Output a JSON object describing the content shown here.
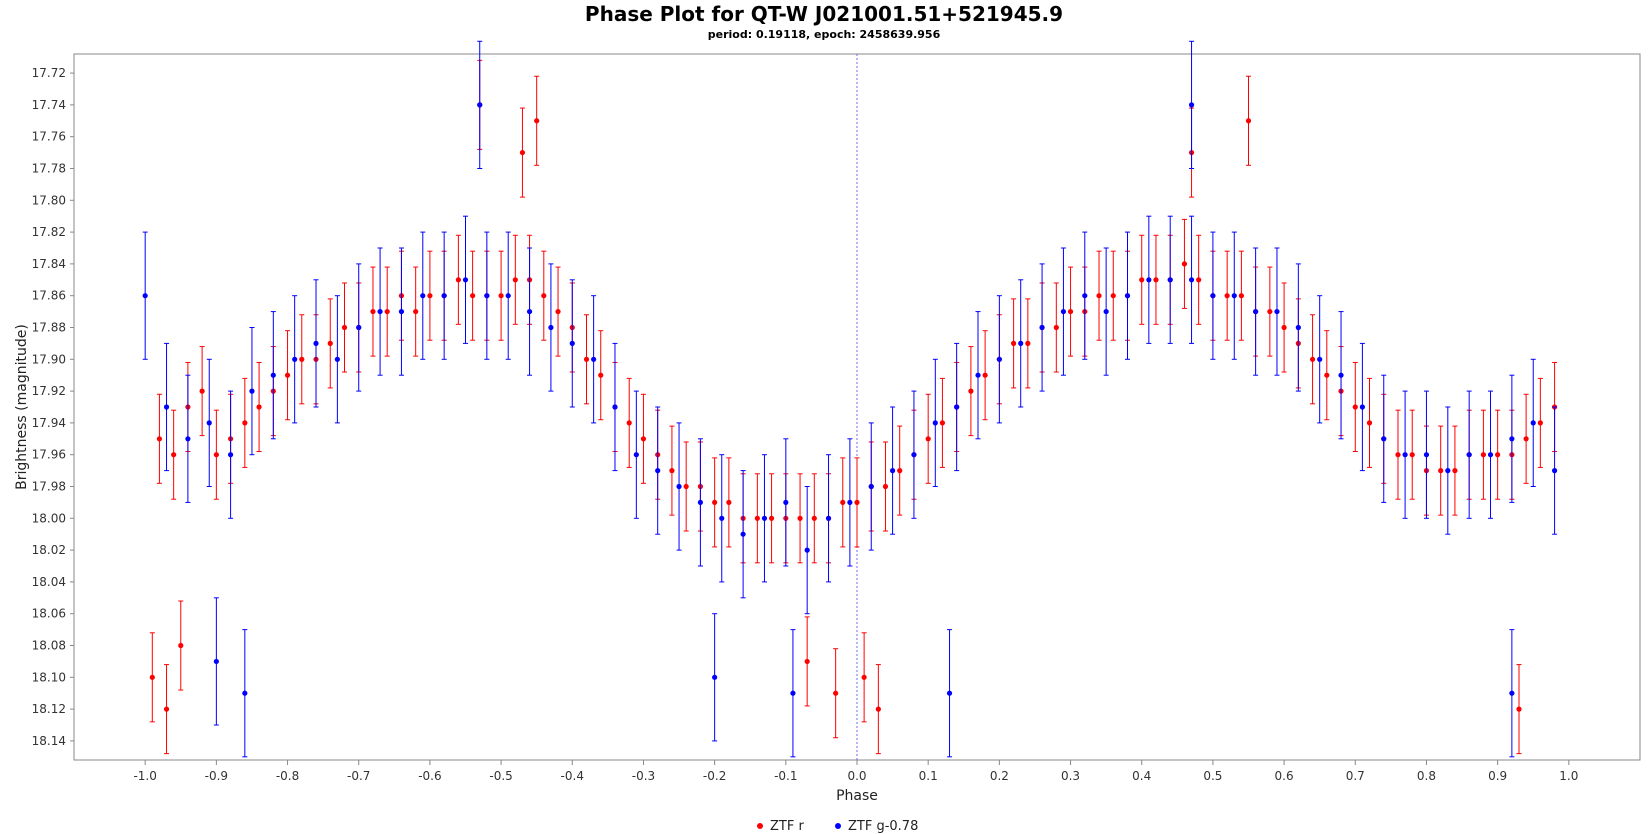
{
  "chart_data": {
    "type": "scatter",
    "title": "Phase Plot for QT-W J021001.51+521945.9",
    "subtitle": "period: 0.19118, epoch: 2458639.956",
    "xlabel": "Phase",
    "ylabel": "Brightness (magnitude)",
    "xlim": [
      -1.1,
      1.1
    ],
    "ylim": [
      17.708,
      18.152
    ],
    "y_inverted": true,
    "x_ticks": [
      "-1.0",
      "-0.9",
      "-0.8",
      "-0.7",
      "-0.6",
      "-0.5",
      "-0.4",
      "-0.3",
      "-0.2",
      "-0.1",
      "0.0",
      "0.1",
      "0.2",
      "0.3",
      "0.4",
      "0.5",
      "0.6",
      "0.7",
      "0.8",
      "0.9",
      "1.0"
    ],
    "y_ticks": [
      "17.72",
      "17.74",
      "17.76",
      "17.78",
      "17.80",
      "17.82",
      "17.84",
      "17.86",
      "17.88",
      "17.90",
      "17.92",
      "17.94",
      "17.96",
      "17.98",
      "18.00",
      "18.02",
      "18.04",
      "18.06",
      "18.08",
      "18.10",
      "18.12",
      "18.14"
    ],
    "grid": false,
    "reference_line_x": 0.0,
    "legend_position": "bottom-center",
    "series": [
      {
        "name": "ZTF r",
        "color": "#ff0000",
        "errorbar": 0.028,
        "x": [
          -0.98,
          -0.96,
          -0.94,
          -0.92,
          -0.9,
          -0.88,
          -0.86,
          -0.84,
          -0.82,
          -0.8,
          -0.78,
          -0.76,
          -0.74,
          -0.72,
          -0.7,
          -0.68,
          -0.66,
          -0.64,
          -0.62,
          -0.6,
          -0.58,
          -0.56,
          -0.54,
          -0.52,
          -0.5,
          -0.48,
          -0.46,
          -0.44,
          -0.42,
          -0.4,
          -0.38,
          -0.36,
          -0.34,
          -0.32,
          -0.3,
          -0.28,
          -0.26,
          -0.24,
          -0.22,
          -0.2,
          -0.18,
          -0.16,
          -0.14,
          -0.12,
          -0.1,
          -0.08,
          -0.06,
          -0.04,
          -0.02,
          0.0,
          0.02,
          0.04,
          0.06,
          0.08,
          0.1,
          0.12,
          0.14,
          0.16,
          0.18,
          0.2,
          0.22,
          0.24,
          0.26,
          0.28,
          0.3,
          0.32,
          0.34,
          0.36,
          0.38,
          0.4,
          0.42,
          0.44,
          0.46,
          0.48,
          0.5,
          0.52,
          0.54,
          0.56,
          0.58,
          0.6,
          0.62,
          0.64,
          0.66,
          0.68,
          0.7,
          0.72,
          0.74,
          0.76,
          0.78,
          0.8,
          0.82,
          0.84,
          0.86,
          0.88,
          0.9,
          0.92,
          0.94,
          0.96,
          0.98,
          -0.99,
          -0.97,
          -0.95,
          -0.53,
          -0.47,
          -0.45,
          -0.07,
          -0.03,
          0.01,
          0.03,
          0.47,
          0.55,
          0.93
        ],
        "y": [
          17.95,
          17.96,
          17.93,
          17.92,
          17.96,
          17.95,
          17.94,
          17.93,
          17.92,
          17.91,
          17.9,
          17.9,
          17.89,
          17.88,
          17.88,
          17.87,
          17.87,
          17.86,
          17.87,
          17.86,
          17.86,
          17.85,
          17.86,
          17.86,
          17.86,
          17.85,
          17.85,
          17.86,
          17.87,
          17.88,
          17.9,
          17.91,
          17.93,
          17.94,
          17.95,
          17.96,
          17.97,
          17.98,
          17.98,
          17.99,
          17.99,
          18.0,
          18.0,
          18.0,
          18.0,
          18.0,
          18.0,
          18.0,
          17.99,
          17.99,
          17.98,
          17.98,
          17.97,
          17.96,
          17.95,
          17.94,
          17.93,
          17.92,
          17.91,
          17.9,
          17.89,
          17.89,
          17.88,
          17.88,
          17.87,
          17.87,
          17.86,
          17.86,
          17.86,
          17.85,
          17.85,
          17.85,
          17.84,
          17.85,
          17.86,
          17.86,
          17.86,
          17.87,
          17.87,
          17.88,
          17.89,
          17.9,
          17.91,
          17.92,
          17.93,
          17.94,
          17.95,
          17.96,
          17.96,
          17.97,
          17.97,
          17.97,
          17.96,
          17.96,
          17.96,
          17.96,
          17.95,
          17.94,
          17.93,
          18.1,
          18.12,
          18.08,
          17.74,
          17.77,
          17.75,
          18.09,
          18.11,
          18.1,
          18.12,
          17.77,
          17.75,
          18.12
        ]
      },
      {
        "name": "ZTF g-0.78",
        "color": "#0000ff",
        "errorbar": 0.04,
        "x": [
          -1.0,
          -0.97,
          -0.94,
          -0.91,
          -0.88,
          -0.85,
          -0.82,
          -0.79,
          -0.76,
          -0.73,
          -0.7,
          -0.67,
          -0.64,
          -0.61,
          -0.58,
          -0.55,
          -0.52,
          -0.49,
          -0.46,
          -0.43,
          -0.4,
          -0.37,
          -0.34,
          -0.31,
          -0.28,
          -0.25,
          -0.22,
          -0.19,
          -0.16,
          -0.13,
          -0.1,
          -0.07,
          -0.04,
          -0.01,
          0.02,
          0.05,
          0.08,
          0.11,
          0.14,
          0.17,
          0.2,
          0.23,
          0.26,
          0.29,
          0.32,
          0.35,
          0.38,
          0.41,
          0.44,
          0.47,
          0.5,
          0.53,
          0.56,
          0.59,
          0.62,
          0.65,
          0.68,
          0.71,
          0.74,
          0.77,
          0.8,
          0.83,
          0.86,
          0.89,
          0.92,
          0.95,
          0.98,
          -0.9,
          -0.86,
          -0.53,
          -0.2,
          -0.09,
          0.13,
          0.47,
          0.92
        ],
        "y": [
          17.86,
          17.93,
          17.95,
          17.94,
          17.96,
          17.92,
          17.91,
          17.9,
          17.89,
          17.9,
          17.88,
          17.87,
          17.87,
          17.86,
          17.86,
          17.85,
          17.86,
          17.86,
          17.87,
          17.88,
          17.89,
          17.9,
          17.93,
          17.96,
          17.97,
          17.98,
          17.99,
          18.0,
          18.01,
          18.0,
          17.99,
          18.02,
          18.0,
          17.99,
          17.98,
          17.97,
          17.96,
          17.94,
          17.93,
          17.91,
          17.9,
          17.89,
          17.88,
          17.87,
          17.86,
          17.87,
          17.86,
          17.85,
          17.85,
          17.85,
          17.86,
          17.86,
          17.87,
          17.87,
          17.88,
          17.9,
          17.91,
          17.93,
          17.95,
          17.96,
          17.96,
          17.97,
          17.96,
          17.96,
          17.95,
          17.94,
          17.97,
          18.09,
          18.11,
          17.74,
          18.1,
          18.11,
          18.11,
          17.74,
          18.11
        ]
      }
    ]
  }
}
